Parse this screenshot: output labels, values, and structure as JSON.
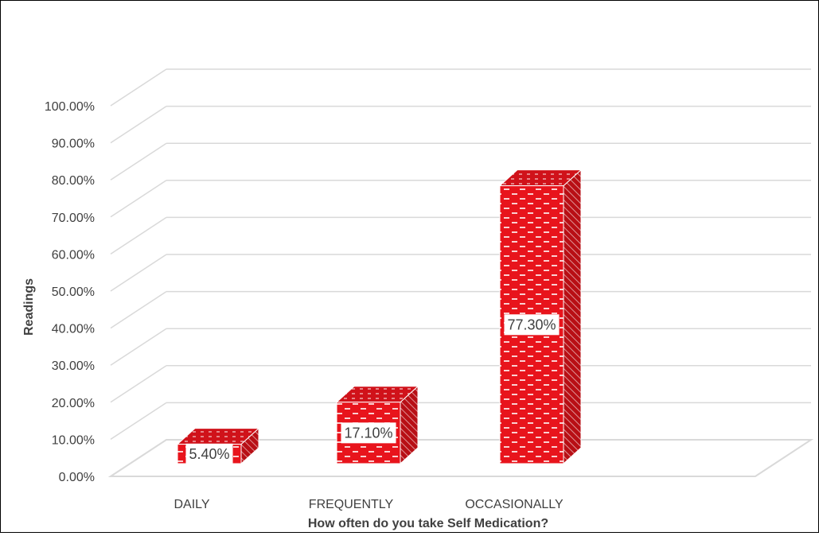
{
  "chart_data": {
    "type": "bar",
    "style": "3d-column",
    "categories": [
      "DAILY",
      "FREQUENTLY",
      "OCCASIONALLY"
    ],
    "values": [
      0.054,
      0.171,
      0.773
    ],
    "data_labels": [
      "5.40%",
      "17.10%",
      "77.30%"
    ],
    "yticks": [
      "0.00%",
      "10.00%",
      "20.00%",
      "30.00%",
      "40.00%",
      "50.00%",
      "60.00%",
      "70.00%",
      "80.00%",
      "90.00%",
      "100.00%"
    ],
    "ylim": [
      0,
      1
    ],
    "xlabel": "How often do you take Self Medication?",
    "ylabel": "Readings",
    "title": "",
    "grid": true,
    "legend": "none",
    "colors": {
      "bar": "#e8141c",
      "bar_side": "#b80f15",
      "bar_dark": "#8f0a0f",
      "pattern": "#ffffff",
      "grid": "#d9d9d9",
      "text": "#404040"
    }
  }
}
